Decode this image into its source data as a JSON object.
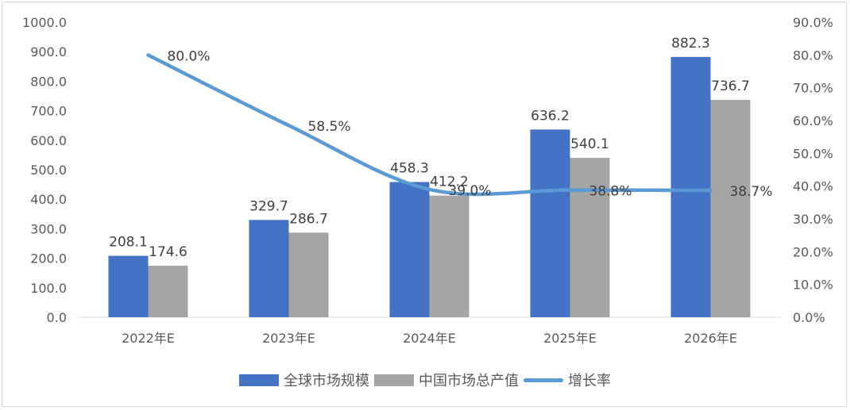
{
  "chart_data": {
    "type": "bar+line",
    "categories": [
      "2022年E",
      "2023年E",
      "2024年E",
      "2025年E",
      "2026年E"
    ],
    "series": [
      {
        "name": "全球市场规模",
        "type": "bar",
        "axis": "left",
        "color": "#4472c4",
        "values": [
          208.1,
          329.7,
          458.3,
          636.2,
          882.3
        ]
      },
      {
        "name": "中国市场总产值",
        "type": "bar",
        "axis": "left",
        "color": "#a5a5a5",
        "values": [
          174.6,
          286.7,
          412.2,
          540.1,
          736.7
        ]
      },
      {
        "name": "增长率",
        "type": "line",
        "axis": "right",
        "color": "#5b9bd5",
        "values": [
          80.0,
          58.5,
          39.0,
          38.8,
          38.7
        ]
      }
    ],
    "left_axis": {
      "range": [
        0,
        1000
      ],
      "step": 100,
      "ticks": [
        "0.0",
        "100.0",
        "200.0",
        "300.0",
        "400.0",
        "500.0",
        "600.0",
        "700.0",
        "800.0",
        "900.0",
        "1000.0"
      ]
    },
    "right_axis": {
      "range": [
        0,
        90
      ],
      "step": 10,
      "ticks": [
        "0.0%",
        "10.0%",
        "20.0%",
        "30.0%",
        "40.0%",
        "50.0%",
        "60.0%",
        "70.0%",
        "80.0%",
        "90.0%"
      ]
    },
    "data_labels": {
      "global": [
        "208.1",
        "329.7",
        "458.3",
        "636.2",
        "882.3"
      ],
      "china": [
        "174.6",
        "286.7",
        "412.2",
        "540.1",
        "736.7"
      ],
      "growth": [
        "80.0%",
        "58.5%",
        "39.0%",
        "38.8%",
        "38.7%"
      ]
    },
    "grid": false,
    "legend_position": "bottom"
  }
}
